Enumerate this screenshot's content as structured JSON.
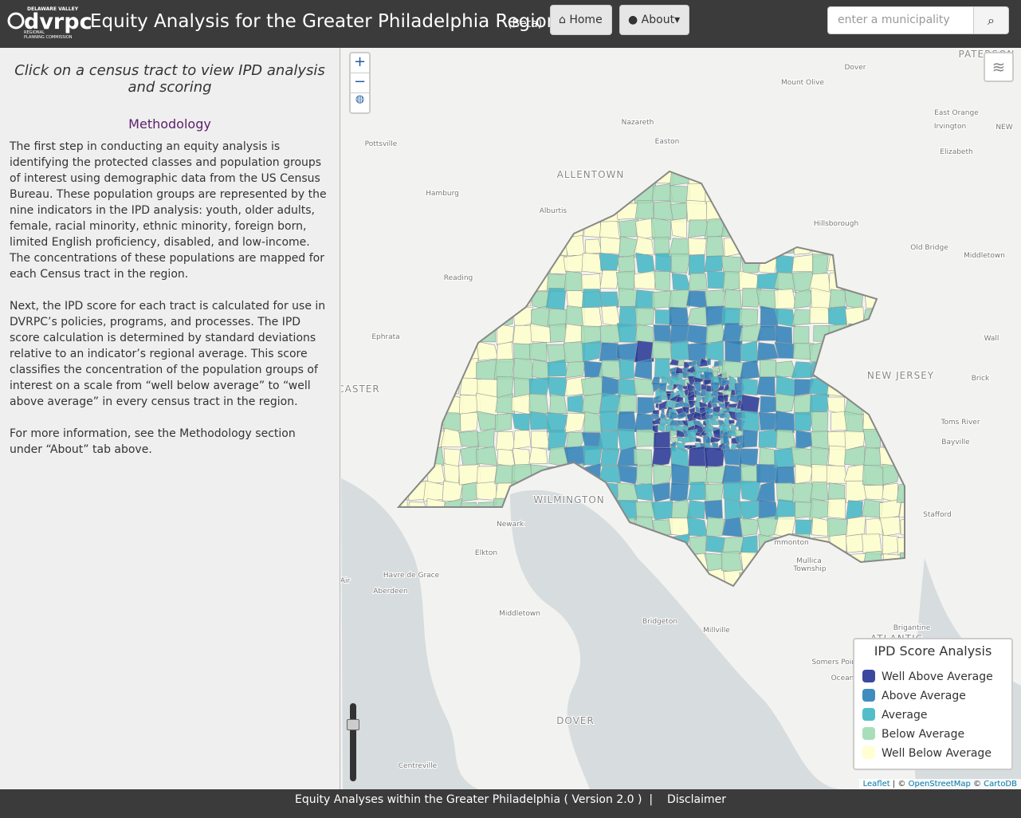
{
  "header": {
    "logo": "dvrpc",
    "logo_top": "DELAWARE VALLEY",
    "logo_bottom_1": "REGIONAL",
    "logo_bottom_2": "PLANNING COMMISSION",
    "title": "Equity Analysis for the Greater Philadelphia Region",
    "beta": "(Beta)",
    "home": "Home",
    "about": "About",
    "search_placeholder": "enter a municipality"
  },
  "sidebar": {
    "prompt": "Click on a census tract to view IPD analysis and scoring",
    "heading": "Methodology",
    "paragraphs": [
      "The first step in conducting an equity analysis is identifying the protected classes and population groups of interest using demographic data from the US Census Bureau. These population groups are represented by the nine indicators in the IPD analysis: youth, older adults, female, racial minority, ethnic minority, foreign born, limited English proficiency, disabled, and low-income. The concentrations of these populations are mapped for each Census tract in the region.",
      "Next, the IPD score for each tract is calculated for use in DVRPC’s policies, programs, and processes. The IPD score calculation is determined by standard deviations relative to an indicator’s regional average. This score classifies the concentration of the population groups of interest on a scale from “well below average” to “well above average” in every census tract in the region.",
      "For more information, see the Methodology section under “About” tab above."
    ]
  },
  "map": {
    "zoom_in": "+",
    "zoom_out": "−",
    "labels": [
      "Dover",
      "Mount Olive",
      "PATERSON",
      "East Orange",
      "Irvington",
      "NEW",
      "Elizabeth",
      "Nazareth",
      "Easton",
      "Pottsville",
      "ALLENTOWN",
      "Hamburg",
      "Alburtis",
      "Hillsborough",
      "Old Bridge",
      "Middletown",
      "Reading",
      "Ephrata",
      "Wall",
      "NEW JERSEY",
      "Brick",
      "CASTER",
      "Toms River",
      "Bayville",
      "WILMINGTON",
      "Stafford",
      "Newark",
      "Elkton",
      "mmonton",
      "Mullica",
      "Township",
      "Havre de Grace",
      "Aberdeen",
      "Air",
      "Middletown",
      "Bridgeton",
      "Millville",
      "Brigantine",
      "ATLANTIC",
      "Somers Point",
      "Ocean",
      "DOVER",
      "Centreville"
    ],
    "legend": {
      "title": "IPD Score Analysis",
      "items": [
        {
          "name": "Well Above Average",
          "color": "#253494"
        },
        {
          "name": "Above Average",
          "color": "#2c7fb8"
        },
        {
          "name": "Average",
          "color": "#41b6c4"
        },
        {
          "name": "Below Average",
          "color": "#a1dab4"
        },
        {
          "name": "Well Below Average",
          "color": "#ffffcc"
        }
      ]
    },
    "attribution": {
      "leaflet": "Leaflet",
      "sep": "| ©",
      "osm": "OpenStreetMap",
      "copy": "©",
      "carto": "CartoDB"
    }
  },
  "footer": {
    "text": "Equity Analyses within the Greater Philadelphia ( Version 2.0 )",
    "sep": "|",
    "disclaimer": "Disclaimer"
  }
}
